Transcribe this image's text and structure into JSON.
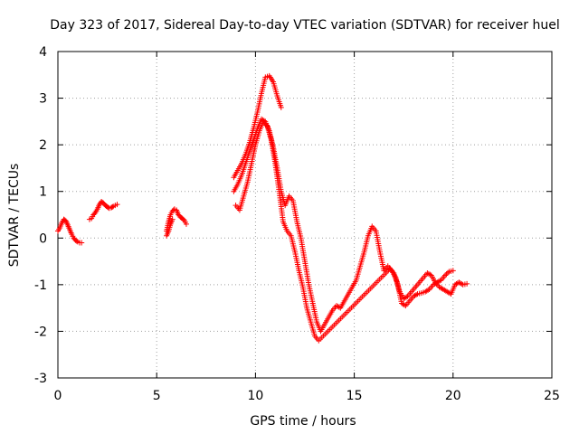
{
  "chart_data": {
    "type": "scatter",
    "title": "Day 323 of 2017, Sidereal Day-to-day VTEC variation (SDTVAR) for receiver huel",
    "xlabel": "GPS time / hours",
    "ylabel": "SDTVAR / TECUs",
    "xlim": [
      0,
      25
    ],
    "ylim": [
      -3,
      4
    ],
    "x_ticks": [
      0,
      5,
      10,
      15,
      20,
      25
    ],
    "x_tick_labels": [
      "0",
      "5",
      "10",
      "15",
      "20",
      "25"
    ],
    "y_ticks": [
      -3,
      -2,
      -1,
      0,
      1,
      2,
      3,
      4
    ],
    "y_tick_labels": [
      "-3",
      "-2",
      "-1",
      "0",
      "1",
      "2",
      "3",
      "4"
    ],
    "grid": true,
    "marker": "+",
    "series_color": "#ff0000",
    "series": [
      {
        "name": "segment-1",
        "x": [
          0.0,
          0.1,
          0.2,
          0.3,
          0.4,
          0.5,
          0.6,
          0.7,
          0.8,
          0.9,
          1.0,
          1.1,
          1.2
        ],
        "y": [
          0.15,
          0.22,
          0.33,
          0.4,
          0.37,
          0.28,
          0.18,
          0.08,
          0.0,
          -0.05,
          -0.08,
          -0.1,
          -0.1
        ]
      },
      {
        "name": "segment-2",
        "x": [
          1.6,
          1.7,
          1.8,
          1.9,
          2.0,
          2.1,
          2.2,
          2.3,
          2.4,
          2.5,
          2.6,
          2.7,
          2.8,
          2.9,
          3.0
        ],
        "y": [
          0.4,
          0.42,
          0.5,
          0.55,
          0.62,
          0.72,
          0.78,
          0.75,
          0.7,
          0.67,
          0.64,
          0.65,
          0.68,
          0.7,
          0.72
        ]
      },
      {
        "name": "segment-3",
        "x": [
          5.5,
          5.6,
          5.7,
          5.8,
          5.9,
          6.0,
          6.1,
          6.2,
          6.3,
          6.4,
          6.5
        ],
        "y": [
          0.15,
          0.35,
          0.5,
          0.58,
          0.62,
          0.6,
          0.5,
          0.45,
          0.42,
          0.38,
          0.3
        ]
      },
      {
        "name": "segment-3b",
        "x": [
          5.5,
          5.6,
          5.7,
          5.8
        ],
        "y": [
          0.05,
          0.15,
          0.3,
          0.4
        ]
      },
      {
        "name": "segment-4-upper",
        "x": [
          8.9,
          9.1,
          9.3,
          9.5,
          9.7,
          9.9,
          10.1,
          10.3,
          10.5,
          10.7,
          10.9,
          11.1,
          11.3
        ],
        "y": [
          1.3,
          1.45,
          1.6,
          1.8,
          2.05,
          2.35,
          2.7,
          3.1,
          3.45,
          3.48,
          3.35,
          3.05,
          2.8
        ]
      },
      {
        "name": "segment-4-mid",
        "x": [
          8.9,
          9.1,
          9.3,
          9.5,
          9.7,
          9.9,
          10.1,
          10.3,
          10.5,
          10.7,
          10.9,
          11.1,
          11.3,
          11.5,
          11.7,
          11.9,
          12.1,
          12.3,
          12.5,
          12.7,
          12.9,
          13.1,
          13.3,
          13.5,
          13.7,
          13.9,
          14.1,
          14.3,
          14.5,
          14.7,
          14.9,
          15.1,
          15.3,
          15.5,
          15.7,
          15.9,
          16.1,
          16.3,
          16.5,
          16.7,
          16.9,
          17.1,
          17.3,
          17.5,
          17.7,
          17.9,
          18.1,
          18.3,
          18.5,
          18.7,
          18.9,
          19.1,
          19.3,
          19.5,
          19.7,
          19.9,
          20.1,
          20.3,
          20.5,
          20.7
        ],
        "y": [
          1.0,
          1.15,
          1.35,
          1.6,
          1.85,
          2.1,
          2.35,
          2.55,
          2.5,
          2.3,
          1.95,
          1.5,
          1.0,
          0.7,
          0.9,
          0.8,
          0.35,
          0.0,
          -0.5,
          -1.0,
          -1.4,
          -1.8,
          -2.0,
          -1.85,
          -1.7,
          -1.55,
          -1.45,
          -1.5,
          -1.35,
          -1.2,
          -1.05,
          -0.9,
          -0.6,
          -0.3,
          0.05,
          0.25,
          0.15,
          -0.3,
          -0.7,
          -0.6,
          -0.7,
          -0.85,
          -1.15,
          -1.3,
          -1.25,
          -1.15,
          -1.05,
          -0.95,
          -0.85,
          -0.75,
          -0.8,
          -0.95,
          -1.05,
          -1.1,
          -1.15,
          -1.2,
          -1.0,
          -0.95,
          -1.0,
          -0.98
        ]
      },
      {
        "name": "segment-4-lower",
        "x": [
          9.0,
          9.2,
          9.4,
          9.6,
          9.8,
          10.0,
          10.2,
          10.4,
          10.6,
          10.8,
          11.0,
          11.2,
          11.4,
          11.6,
          11.8,
          12.0,
          12.2,
          12.4,
          12.6,
          12.8,
          13.0,
          13.2,
          16.6,
          16.8,
          17.0,
          17.2,
          17.4,
          17.6,
          17.8,
          18.0,
          18.2,
          18.4,
          18.6,
          18.8,
          19.0,
          19.2,
          19.4,
          19.6,
          19.8,
          20.0
        ],
        "y": [
          0.7,
          0.6,
          0.9,
          1.2,
          1.6,
          2.0,
          2.3,
          2.5,
          2.4,
          2.1,
          1.6,
          1.0,
          0.35,
          0.15,
          0.05,
          -0.3,
          -0.7,
          -1.05,
          -1.5,
          -1.8,
          -2.1,
          -2.2,
          -0.75,
          -0.65,
          -0.75,
          -1.0,
          -1.4,
          -1.45,
          -1.35,
          -1.25,
          -1.2,
          -1.18,
          -1.15,
          -1.1,
          -1.0,
          -0.95,
          -0.9,
          -0.8,
          -0.72,
          -0.7
        ]
      }
    ]
  }
}
